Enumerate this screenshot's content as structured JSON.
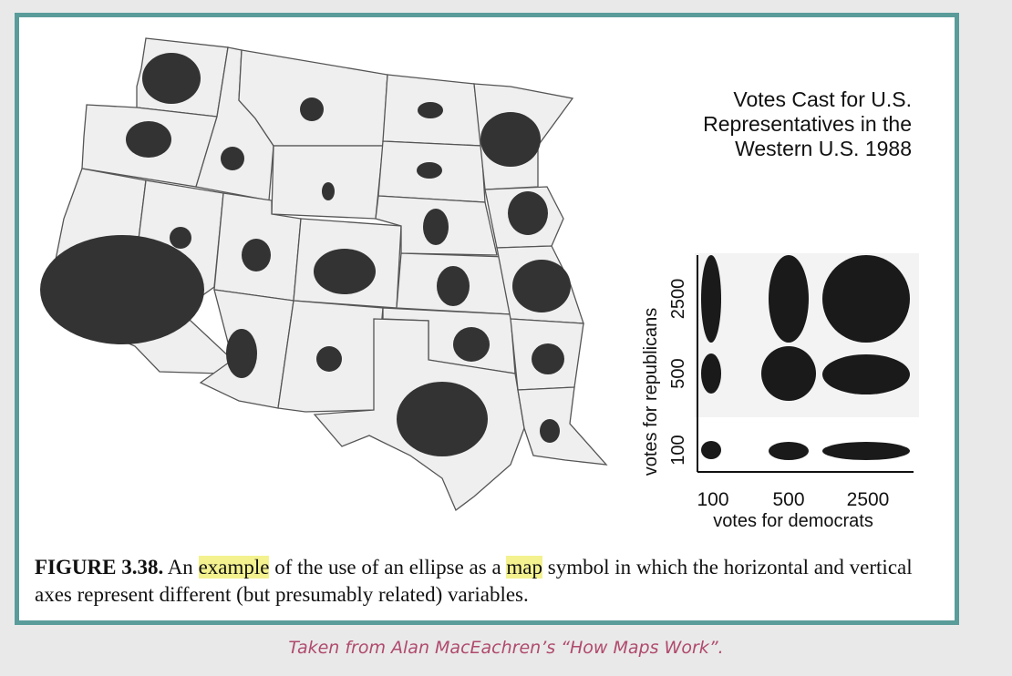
{
  "map": {
    "title_lines": [
      "Votes Cast for U.S.",
      "Representatives in the",
      "Western U.S. 1988"
    ],
    "legend": {
      "y_axis_label": "votes for republicans",
      "x_axis_label": "votes for democrats",
      "x_ticks": [
        "100",
        "500",
        "2500"
      ],
      "y_ticks": [
        "2500",
        "500",
        "100"
      ]
    }
  },
  "caption": {
    "figure_number": "FIGURE 3.38.",
    "text_before_example": "An",
    "highlight_example": "example",
    "text_between": "of the use of an ellipse as a",
    "highlight_map": "map",
    "text_after": "symbol in which the horizontal and vertical axes represent different (but presumably related) variables."
  },
  "source_note": "Taken from Alan MacEachren’s “How Maps Work”.",
  "colors": {
    "frame": "#5a9c9a",
    "symbol": "#333333",
    "highlight": "#f3f28f",
    "source_note": "#b04a6e"
  }
}
